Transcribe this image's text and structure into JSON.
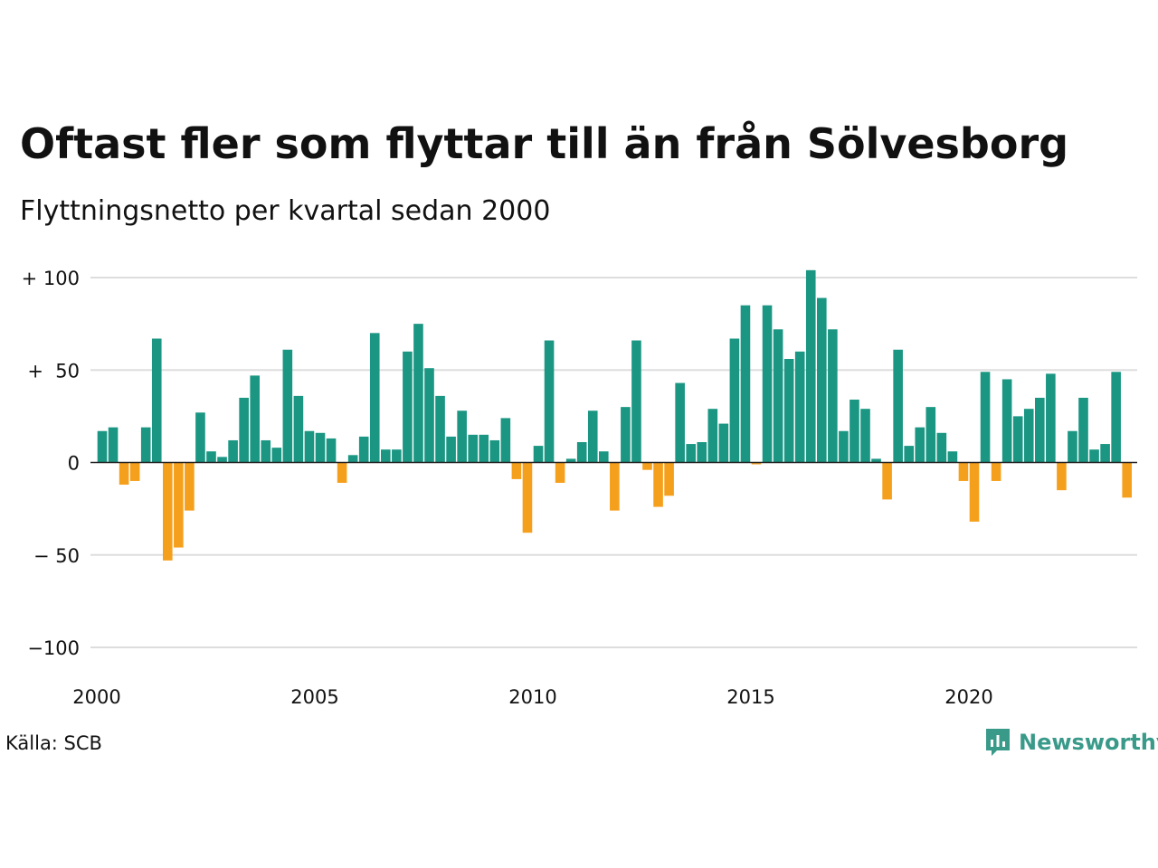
{
  "header": {
    "title": "Oftast fler som flyttar till än från Sölvesborg",
    "subtitle": "Flyttningsnetto per kvartal sedan 2000"
  },
  "footer": {
    "source": "Källa: SCB",
    "logo_text": "Newsworthy",
    "logo_icon": "bar-chart-speech-bubble-icon"
  },
  "colors": {
    "positive": "#1a9683",
    "negative": "#f5a01c",
    "grid": "#dddddd",
    "baseline": "#222222",
    "logo": "#3a9a8a"
  },
  "chart_data": {
    "type": "bar",
    "ylim": [
      -100,
      100
    ],
    "xlim": [
      2000,
      2023.75
    ],
    "yticks": [
      {
        "value": 100,
        "label": "+ 100"
      },
      {
        "value": 50,
        "label": "+  50"
      },
      {
        "value": 0,
        "label": "0"
      },
      {
        "value": -50,
        "label": "− 50"
      },
      {
        "value": -100,
        "label": "−100"
      }
    ],
    "xticks": [
      {
        "value": 2000,
        "label": "2000"
      },
      {
        "value": 2005,
        "label": "2005"
      },
      {
        "value": 2010,
        "label": "2010"
      },
      {
        "value": 2015,
        "label": "2015"
      },
      {
        "value": 2020,
        "label": "2020"
      }
    ],
    "grid": true,
    "legend": "none",
    "series": [
      {
        "x_start": 2000,
        "frequency": "quarterly",
        "values": [
          17,
          19,
          -12,
          -10,
          19,
          67,
          -53,
          -46,
          -26,
          27,
          6,
          3,
          12,
          35,
          47,
          12,
          8,
          61,
          36,
          17,
          16,
          13,
          -11,
          4,
          14,
          70,
          7,
          7,
          60,
          75,
          51,
          36,
          14,
          28,
          15,
          15,
          12,
          24,
          -9,
          -38,
          9,
          66,
          -11,
          2,
          11,
          28,
          6,
          -26,
          30,
          66,
          -4,
          -24,
          -18,
          43,
          10,
          11,
          29,
          21,
          67,
          85,
          -1,
          85,
          72,
          56,
          60,
          104,
          89,
          72,
          17,
          34,
          29,
          2,
          -20,
          61,
          9,
          19,
          30,
          16,
          6,
          -10,
          -32,
          49,
          -10,
          45,
          25,
          29,
          35,
          48,
          -15,
          17,
          35,
          7,
          10,
          49,
          -19
        ]
      }
    ]
  }
}
